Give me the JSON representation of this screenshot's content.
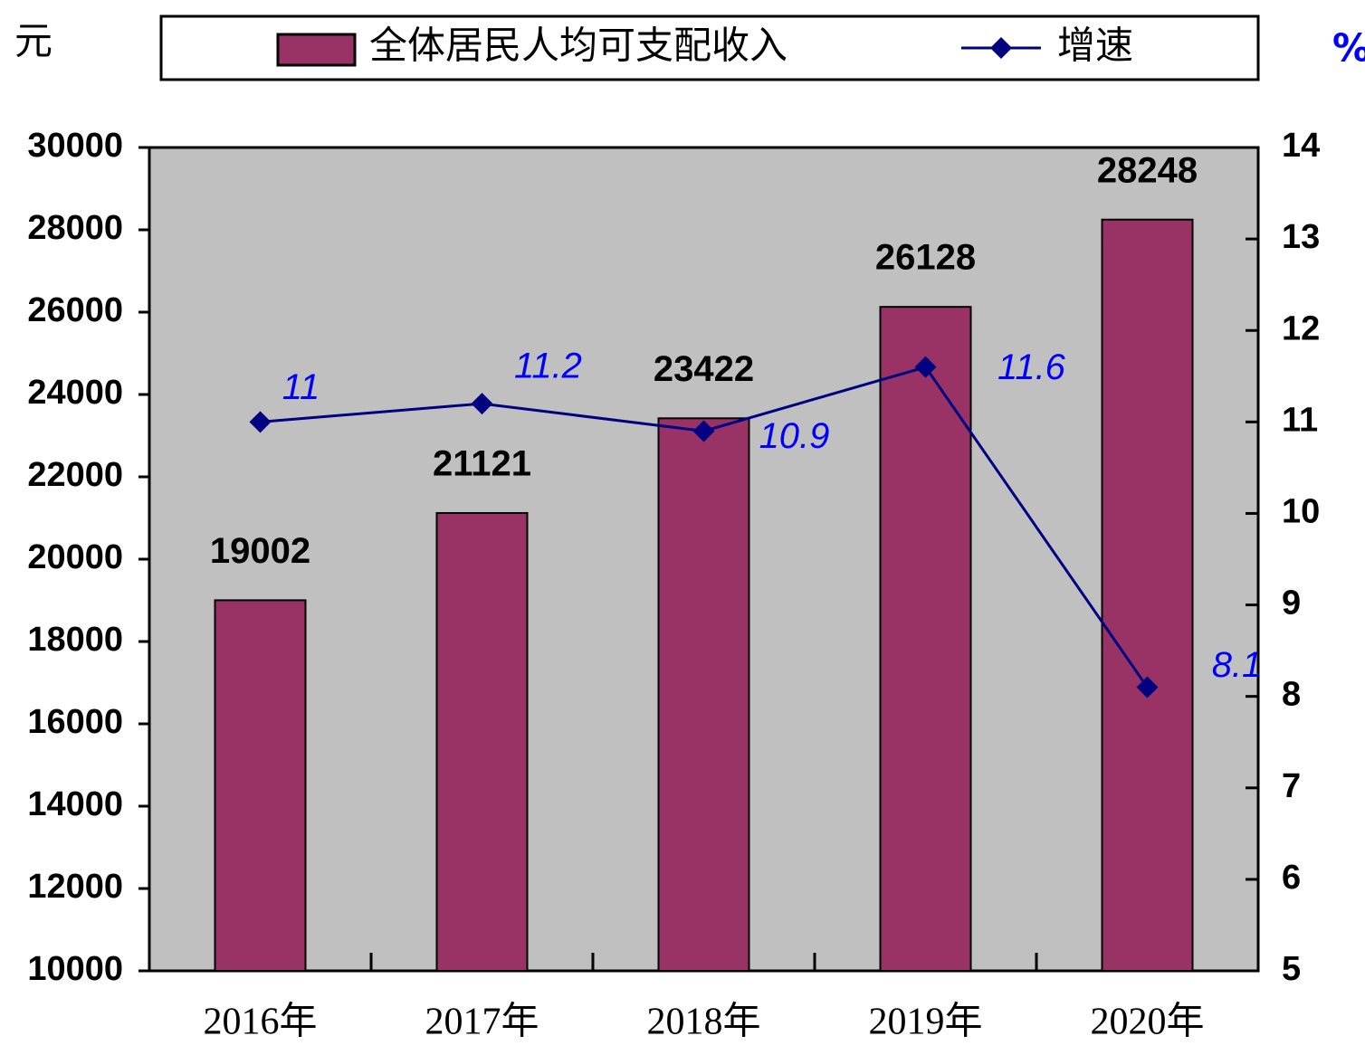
{
  "chart_data": {
    "type": "bar",
    "y_label": "元",
    "y2_label": "%",
    "categories": [
      "2016年",
      "2017年",
      "2018年",
      "2019年",
      "2020年"
    ],
    "series": [
      {
        "name": "全体居民人均可支配收入",
        "color": "#993366",
        "values": [
          19002,
          21121,
          23422,
          26128,
          28248
        ]
      },
      {
        "name": "增速",
        "type": "line",
        "axis": "y2",
        "color": "#000080",
        "label_color": "#0000ff",
        "values": [
          11,
          11.2,
          10.9,
          11.6,
          8.1
        ]
      }
    ],
    "ylim": [
      10000,
      30000
    ],
    "yticks": [
      10000,
      12000,
      14000,
      16000,
      18000,
      20000,
      22000,
      24000,
      26000,
      28000,
      30000
    ],
    "y2lim": [
      5,
      14
    ],
    "y2ticks": [
      5,
      6,
      7,
      8,
      9,
      10,
      11,
      12,
      13,
      14
    ],
    "plot_background": "#c0c0c0"
  }
}
